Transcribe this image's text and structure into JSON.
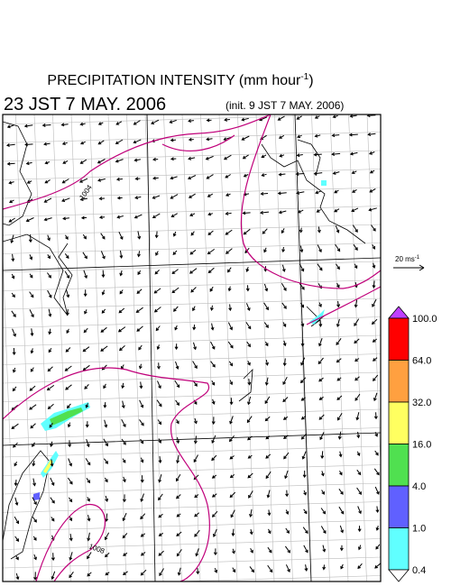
{
  "title": {
    "main": "PRECIPITATION INTENSITY (mm hour",
    "sup": "-1",
    "close": ")"
  },
  "valid_time": "23 JST 7 MAY. 2006",
  "init_time": "(init. 9 JST 7 MAY. 2006)",
  "vector_legend": {
    "text": "20 ms",
    "sup": "-1"
  },
  "contour_labels": [
    "1004",
    "1008"
  ],
  "contour_color": "#c0007a",
  "colorbar": {
    "labels": [
      "100.0",
      "64.0",
      "32.0",
      "16.0",
      "4.0",
      "1.0",
      "0.4"
    ],
    "colors": [
      "#ff0000",
      "#ffa040",
      "#ffff60",
      "#50e050",
      "#6060ff",
      "#60ffff"
    ],
    "over_color": "#c040ff",
    "under_color": "#ffffff"
  }
}
